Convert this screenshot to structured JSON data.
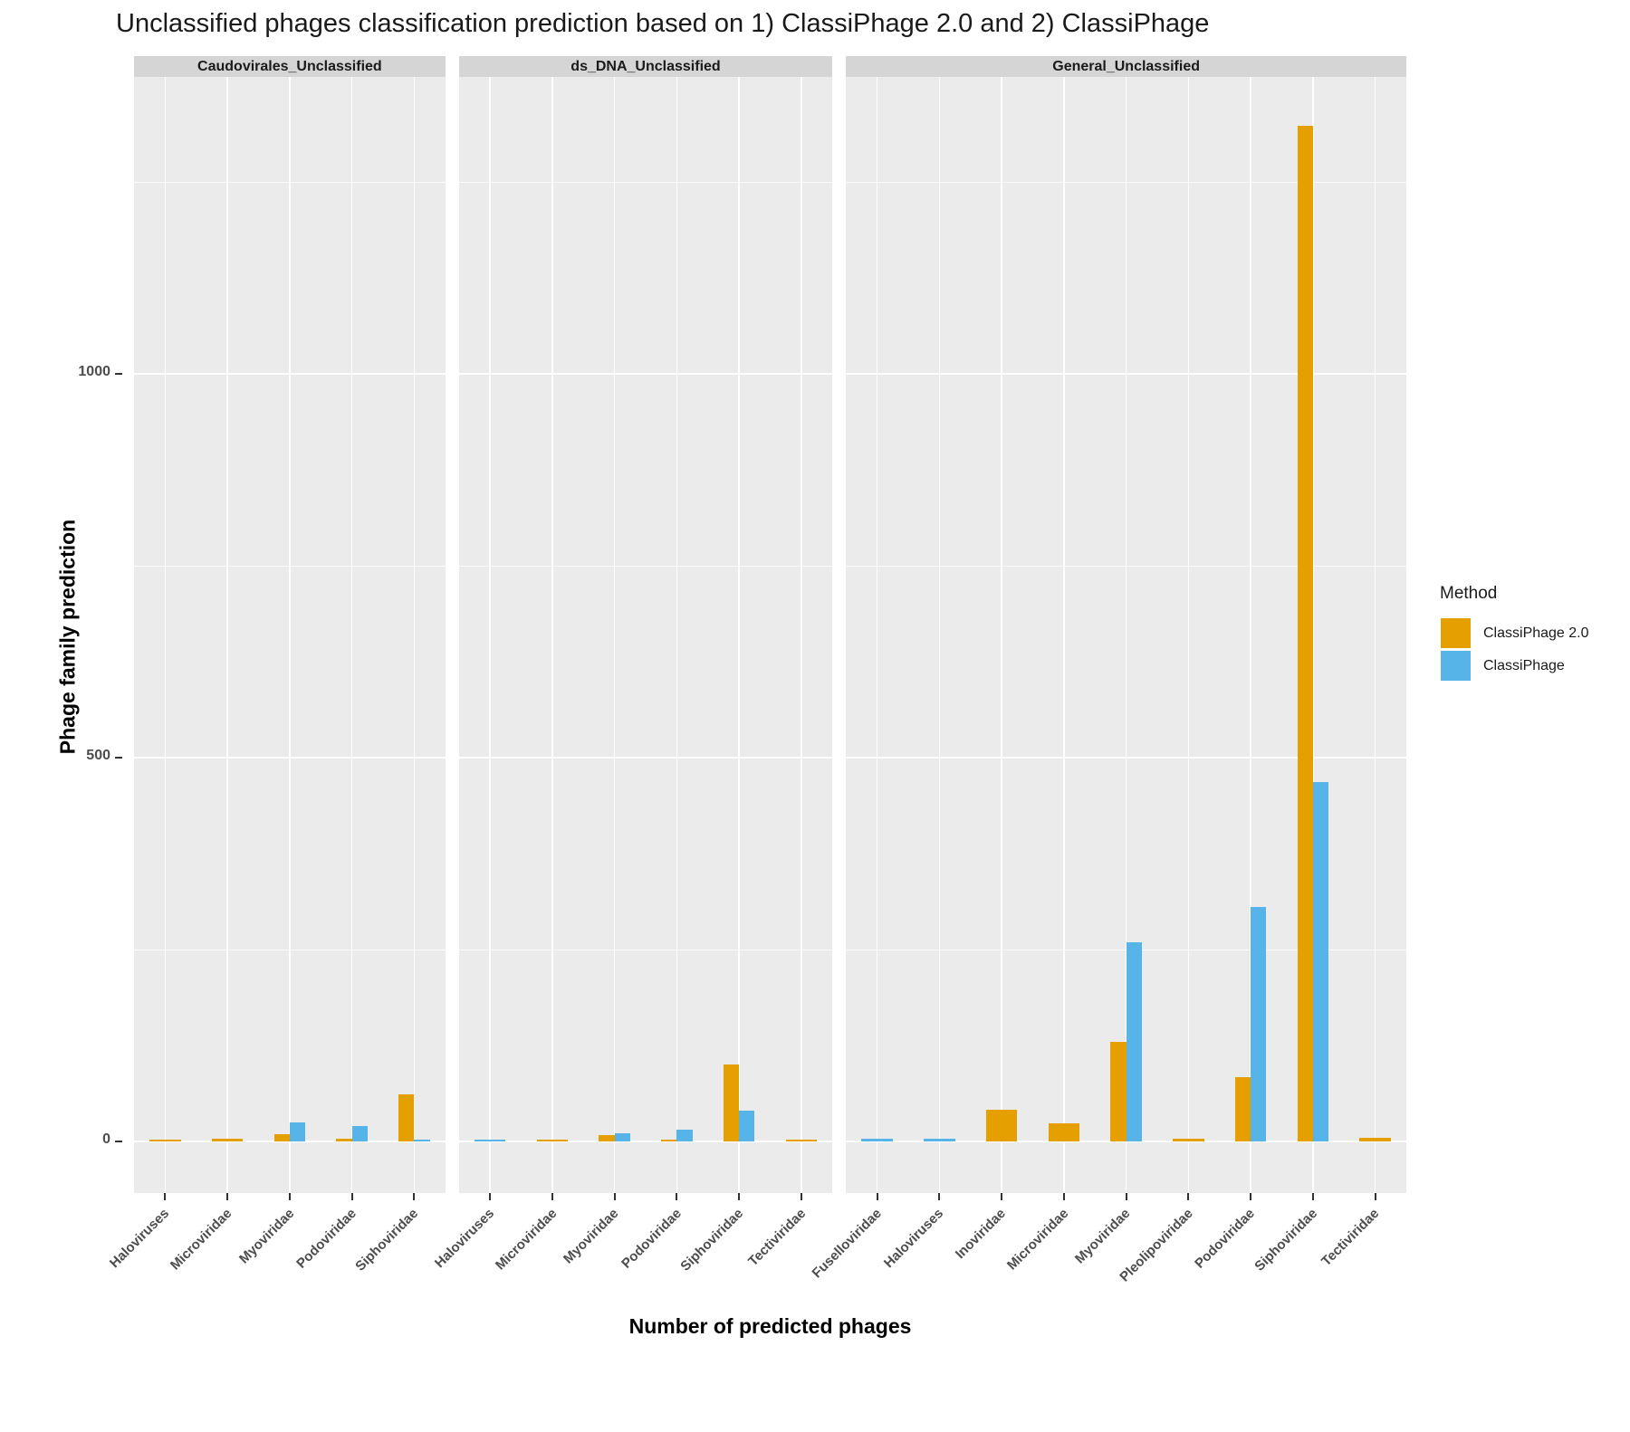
{
  "chart_data": {
    "type": "bar",
    "title": "Unclassified phages classification prediction based on 1) ClassiPhage 2.0 and 2) ClassiPhage",
    "xlabel": "Number of predicted phages",
    "ylabel": "Phage family prediction",
    "yticks": [
      0,
      500,
      1000
    ],
    "yticks_minor": [
      250,
      750,
      1250
    ],
    "ylim": [
      -67,
      1387
    ],
    "grid": true,
    "legend": {
      "title": "Method",
      "position": "right"
    },
    "series_meta": [
      {
        "name": "ClassiPhage 2.0",
        "color": "#E69F00"
      },
      {
        "name": "ClassiPhage",
        "color": "#56B4E9"
      }
    ],
    "facets": [
      {
        "label": "Caudovirales_Unclassified",
        "categories": [
          "Haloviruses",
          "Microviridae",
          "Myoviridae",
          "Podoviridae",
          "Siphoviridae"
        ],
        "series": [
          {
            "name": "ClassiPhage 2.0",
            "values": [
              2,
              4,
              10,
              4,
              62
            ]
          },
          {
            "name": "ClassiPhage",
            "values": [
              null,
              null,
              25,
              20,
              2
            ]
          }
        ]
      },
      {
        "label": "ds_DNA_Unclassified",
        "categories": [
          "Haloviruses",
          "Microviridae",
          "Myoviridae",
          "Podoviridae",
          "Siphoviridae",
          "Tectiviridae"
        ],
        "series": [
          {
            "name": "ClassiPhage 2.0",
            "values": [
              null,
              2,
              9,
              2,
              100,
              2
            ]
          },
          {
            "name": "ClassiPhage",
            "values": [
              2,
              null,
              11,
              16,
              40,
              null
            ]
          }
        ]
      },
      {
        "label": "General_Unclassified",
        "categories": [
          "Fuselloviridae",
          "Haloviruses",
          "Inoviridae",
          "Microviridae",
          "Myoviridae",
          "Pleolipoviridae",
          "Podoviridae",
          "Siphoviridae",
          "Tectiviridae"
        ],
        "series": [
          {
            "name": "ClassiPhage 2.0",
            "values": [
              null,
              null,
              41,
              24,
              130,
              4,
              84,
              1323,
              5
            ]
          },
          {
            "name": "ClassiPhage",
            "values": [
              4,
              4,
              null,
              null,
              260,
              null,
              306,
              468,
              null
            ]
          }
        ]
      }
    ],
    "colors": {
      "panel_bg": "#EBEBEB",
      "strip_bg": "#D5D5D5",
      "grid": "#FFFFFF",
      "axis_text": "#4D4D4D",
      "title_text": "#1A1A1A"
    }
  }
}
